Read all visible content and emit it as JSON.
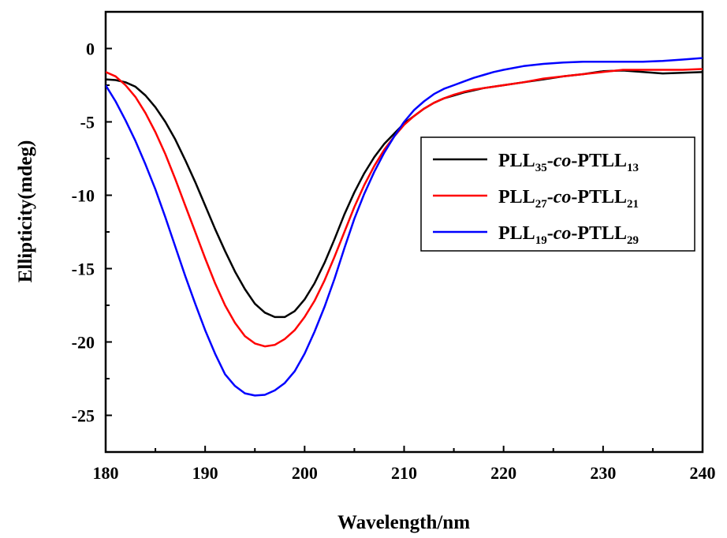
{
  "chart_data": {
    "type": "line",
    "xlabel": "Wavelength/nm",
    "ylabel": "Ellipticity(mdeg)",
    "xlim": [
      180,
      240
    ],
    "ylim": [
      -27.5,
      2.5
    ],
    "x_ticks": [
      180,
      190,
      200,
      210,
      220,
      230,
      240
    ],
    "y_ticks": [
      0,
      -5,
      -10,
      -15,
      -20,
      -25
    ],
    "grid": false,
    "legend_position": "right",
    "series": [
      {
        "name": "PLL35-co-PTLL13",
        "legend": {
          "base": "PLL",
          "sub1": "35",
          "mid": "-",
          "italic": "co",
          "mid2": "-PTLL",
          "sub2": "13"
        },
        "color": "#000000",
        "x": [
          180,
          181,
          182,
          183,
          184,
          185,
          186,
          187,
          188,
          189,
          190,
          191,
          192,
          193,
          194,
          195,
          196,
          197,
          198,
          199,
          200,
          201,
          202,
          203,
          204,
          205,
          206,
          207,
          208,
          209,
          210,
          211,
          212,
          213,
          214,
          215,
          216,
          217,
          218,
          219,
          220,
          222,
          224,
          226,
          228,
          230,
          232,
          234,
          236,
          238,
          240
        ],
        "y": [
          -2.1,
          -2.15,
          -2.3,
          -2.6,
          -3.2,
          -4.0,
          -5.0,
          -6.2,
          -7.6,
          -9.1,
          -10.7,
          -12.3,
          -13.8,
          -15.2,
          -16.4,
          -17.4,
          -18.0,
          -18.3,
          -18.3,
          -17.9,
          -17.1,
          -16.0,
          -14.6,
          -13.0,
          -11.3,
          -9.8,
          -8.5,
          -7.4,
          -6.5,
          -5.8,
          -5.1,
          -4.6,
          -4.1,
          -3.7,
          -3.4,
          -3.2,
          -3.0,
          -2.85,
          -2.7,
          -2.6,
          -2.5,
          -2.3,
          -2.1,
          -1.9,
          -1.75,
          -1.55,
          -1.5,
          -1.6,
          -1.7,
          -1.65,
          -1.6
        ]
      },
      {
        "name": "PLL27-co-PTLL21",
        "legend": {
          "base": "PLL",
          "sub1": "27",
          "mid": "-",
          "italic": "co",
          "mid2": "-PTLL",
          "sub2": "21"
        },
        "color": "#ff0000",
        "x": [
          180,
          181,
          182,
          183,
          184,
          185,
          186,
          187,
          188,
          189,
          190,
          191,
          192,
          193,
          194,
          195,
          196,
          197,
          198,
          199,
          200,
          201,
          202,
          203,
          204,
          205,
          206,
          207,
          208,
          209,
          210,
          211,
          212,
          213,
          214,
          215,
          216,
          217,
          218,
          219,
          220,
          222,
          224,
          226,
          228,
          230,
          232,
          234,
          236,
          238,
          240
        ],
        "y": [
          -1.6,
          -1.9,
          -2.5,
          -3.3,
          -4.4,
          -5.7,
          -7.2,
          -8.9,
          -10.7,
          -12.5,
          -14.3,
          -16.0,
          -17.5,
          -18.7,
          -19.6,
          -20.1,
          -20.3,
          -20.2,
          -19.8,
          -19.2,
          -18.3,
          -17.2,
          -15.8,
          -14.2,
          -12.5,
          -10.8,
          -9.3,
          -8.0,
          -6.9,
          -6.0,
          -5.2,
          -4.6,
          -4.1,
          -3.7,
          -3.4,
          -3.15,
          -2.95,
          -2.8,
          -2.7,
          -2.6,
          -2.5,
          -2.3,
          -2.05,
          -1.9,
          -1.75,
          -1.6,
          -1.45,
          -1.45,
          -1.45,
          -1.45,
          -1.4
        ]
      },
      {
        "name": "PLL19-co-PTLL29",
        "legend": {
          "base": "PLL",
          "sub1": "19",
          "mid": "-",
          "italic": "co",
          "mid2": "-PTLL",
          "sub2": "29"
        },
        "color": "#0000ff",
        "x": [
          180,
          181,
          182,
          183,
          184,
          185,
          186,
          187,
          188,
          189,
          190,
          191,
          192,
          193,
          194,
          195,
          196,
          197,
          198,
          199,
          200,
          201,
          202,
          203,
          204,
          205,
          206,
          207,
          208,
          209,
          210,
          211,
          212,
          213,
          214,
          215,
          216,
          217,
          218,
          219,
          220,
          222,
          224,
          226,
          228,
          230,
          232,
          234,
          236,
          238,
          240
        ],
        "y": [
          -2.5,
          -3.6,
          -4.9,
          -6.3,
          -7.9,
          -9.6,
          -11.5,
          -13.5,
          -15.5,
          -17.4,
          -19.2,
          -20.8,
          -22.2,
          -23.0,
          -23.5,
          -23.65,
          -23.6,
          -23.3,
          -22.8,
          -22.0,
          -20.8,
          -19.3,
          -17.6,
          -15.7,
          -13.6,
          -11.6,
          -9.9,
          -8.4,
          -7.1,
          -6.0,
          -5.0,
          -4.2,
          -3.6,
          -3.1,
          -2.75,
          -2.5,
          -2.25,
          -2.0,
          -1.8,
          -1.6,
          -1.45,
          -1.2,
          -1.05,
          -0.95,
          -0.9,
          -0.9,
          -0.9,
          -0.9,
          -0.85,
          -0.75,
          -0.65
        ]
      }
    ]
  }
}
